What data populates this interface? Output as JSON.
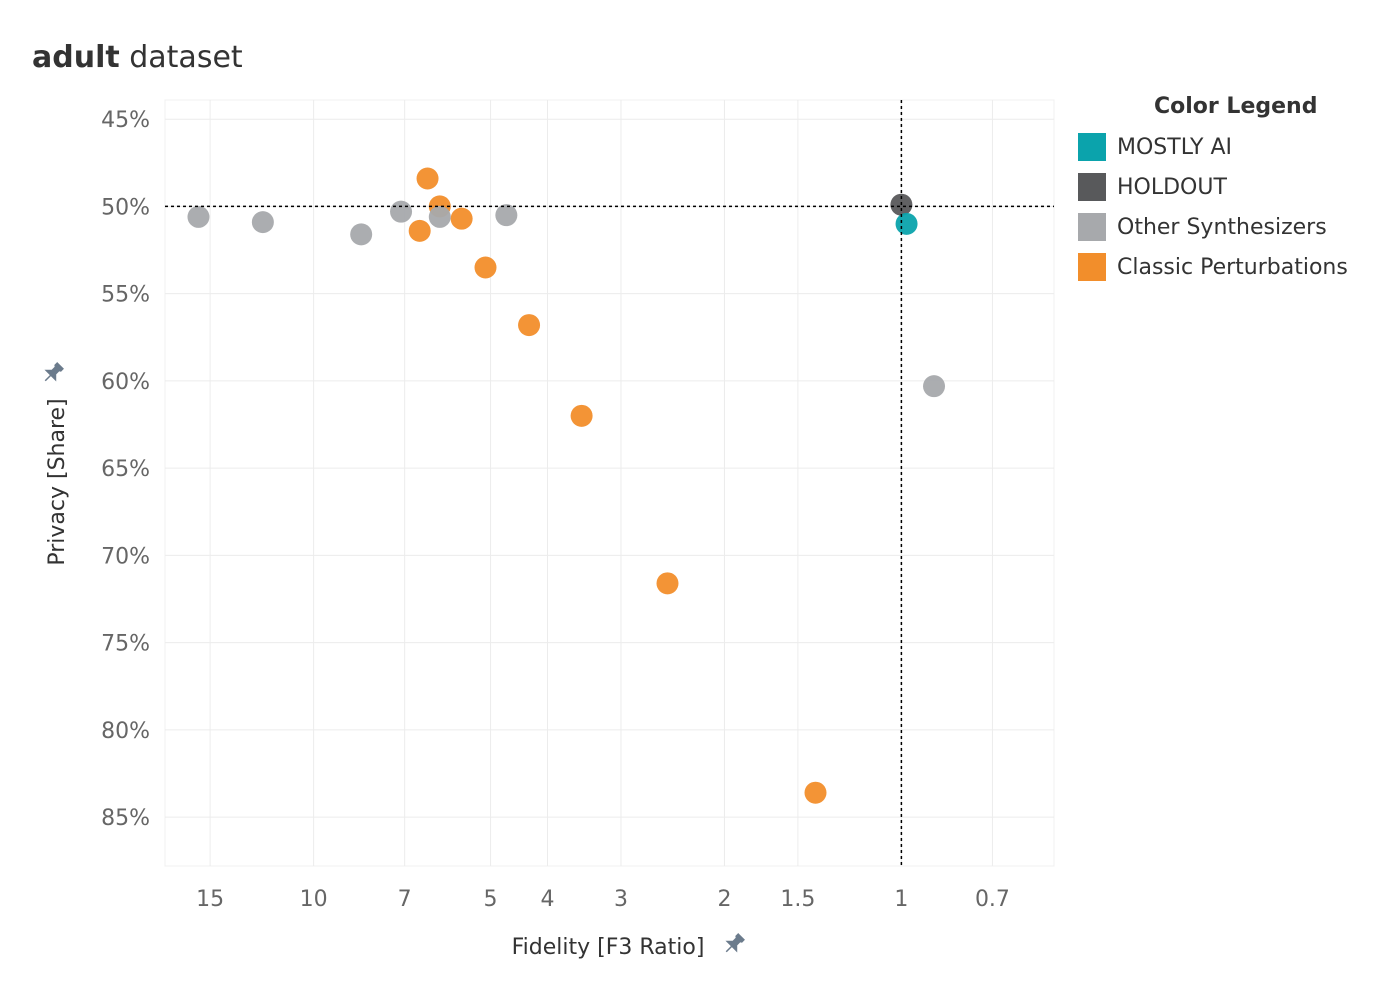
{
  "title_bold": "adult",
  "title_rest": " dataset",
  "legend": {
    "title": "Color Legend",
    "items": [
      {
        "label": "MOSTLY AI",
        "color": "#0ba3ac"
      },
      {
        "label": "HOLDOUT",
        "color": "#58595b"
      },
      {
        "label": "Other Synthesizers",
        "color": "#a7a9ac"
      },
      {
        "label": "Classic Perturbations",
        "color": "#f28e2b"
      }
    ]
  },
  "chart_data": {
    "type": "scatter",
    "xlabel": "Fidelity [F3 Ratio]",
    "ylabel": "Privacy [Share]",
    "x_scale": "log",
    "x_reversed": true,
    "xlim": [
      17.9,
      0.55
    ],
    "ylim": [
      43.9,
      87.8
    ],
    "y_reversed": true,
    "x_ticks": [
      15,
      10,
      7,
      5,
      4,
      3,
      2,
      1.5,
      1,
      0.7
    ],
    "x_tick_labels": [
      "15",
      "10",
      "7",
      "5",
      "4",
      "3",
      "2",
      "1.5",
      "1",
      "0.7"
    ],
    "y_ticks": [
      45,
      50,
      55,
      60,
      65,
      70,
      75,
      80,
      85
    ],
    "y_tick_labels": [
      "45%",
      "50%",
      "55%",
      "60%",
      "65%",
      "70%",
      "75%",
      "80%",
      "85%"
    ],
    "grid": true,
    "reference_lines": {
      "x": 1,
      "y": 50
    },
    "legend_position": "right",
    "series": [
      {
        "name": "Other Synthesizers",
        "color": "#a7a9ac",
        "points": [
          [
            15.7,
            50.6
          ],
          [
            12.2,
            50.9
          ],
          [
            8.3,
            51.6
          ],
          [
            7.1,
            50.3
          ],
          [
            4.7,
            50.5
          ],
          [
            0.88,
            60.3
          ]
        ]
      },
      {
        "name": "Classic Perturbations",
        "color": "#f28e2b",
        "points": [
          [
            6.4,
            48.4
          ],
          [
            6.1,
            50.0
          ],
          [
            6.6,
            51.4
          ],
          [
            5.6,
            50.7
          ],
          [
            5.1,
            53.5
          ],
          [
            4.3,
            56.8
          ],
          [
            3.5,
            62.0
          ],
          [
            2.5,
            71.6
          ],
          [
            1.4,
            83.6
          ]
        ]
      },
      {
        "name": "Other Synthesizers",
        "color": "#a7a9ac",
        "points": [
          [
            6.1,
            50.6
          ]
        ]
      },
      {
        "name": "HOLDOUT",
        "color": "#58595b",
        "points": [
          [
            1.0,
            49.9
          ]
        ]
      },
      {
        "name": "MOSTLY AI",
        "color": "#0ba3ac",
        "points": [
          [
            0.98,
            51.0
          ]
        ]
      }
    ]
  }
}
